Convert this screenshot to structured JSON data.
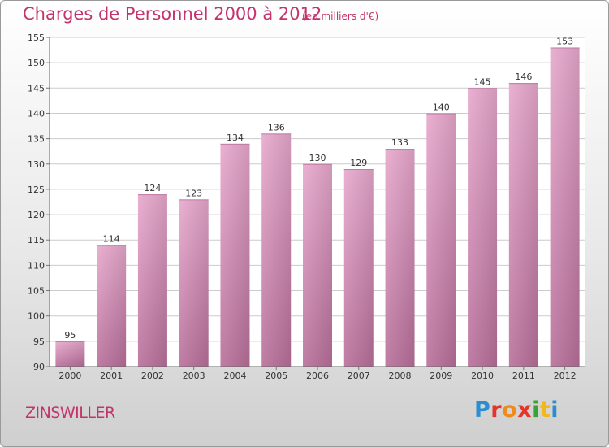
{
  "title": "Charges de Personnel 2000 à 2012",
  "subtitle": "(en milliers d'€)",
  "place": "ZINSWILLER",
  "logo": {
    "text": "Proxiti",
    "letter_colors": [
      "#2a8fd1",
      "#e5342a",
      "#f08a1c",
      "#e5342a",
      "#3aa335",
      "#f2b71b",
      "#2a8fd1"
    ]
  },
  "colors": {
    "title": "#c4336b",
    "bar_top": "#e7a8cd",
    "bar_bottom": "#b86f9a",
    "grid": "#cccccc"
  },
  "chart_data": {
    "type": "bar",
    "categories": [
      "2000",
      "2001",
      "2002",
      "2003",
      "2004",
      "2005",
      "2006",
      "2007",
      "2008",
      "2009",
      "2010",
      "2011",
      "2012"
    ],
    "values": [
      95,
      114,
      124,
      123,
      134,
      136,
      130,
      129,
      133,
      140,
      145,
      146,
      153
    ],
    "ylim": [
      90,
      155
    ],
    "yticks": [
      90,
      95,
      100,
      105,
      110,
      115,
      120,
      125,
      130,
      135,
      140,
      145,
      150,
      155
    ],
    "grid": true,
    "data_labels": true
  }
}
